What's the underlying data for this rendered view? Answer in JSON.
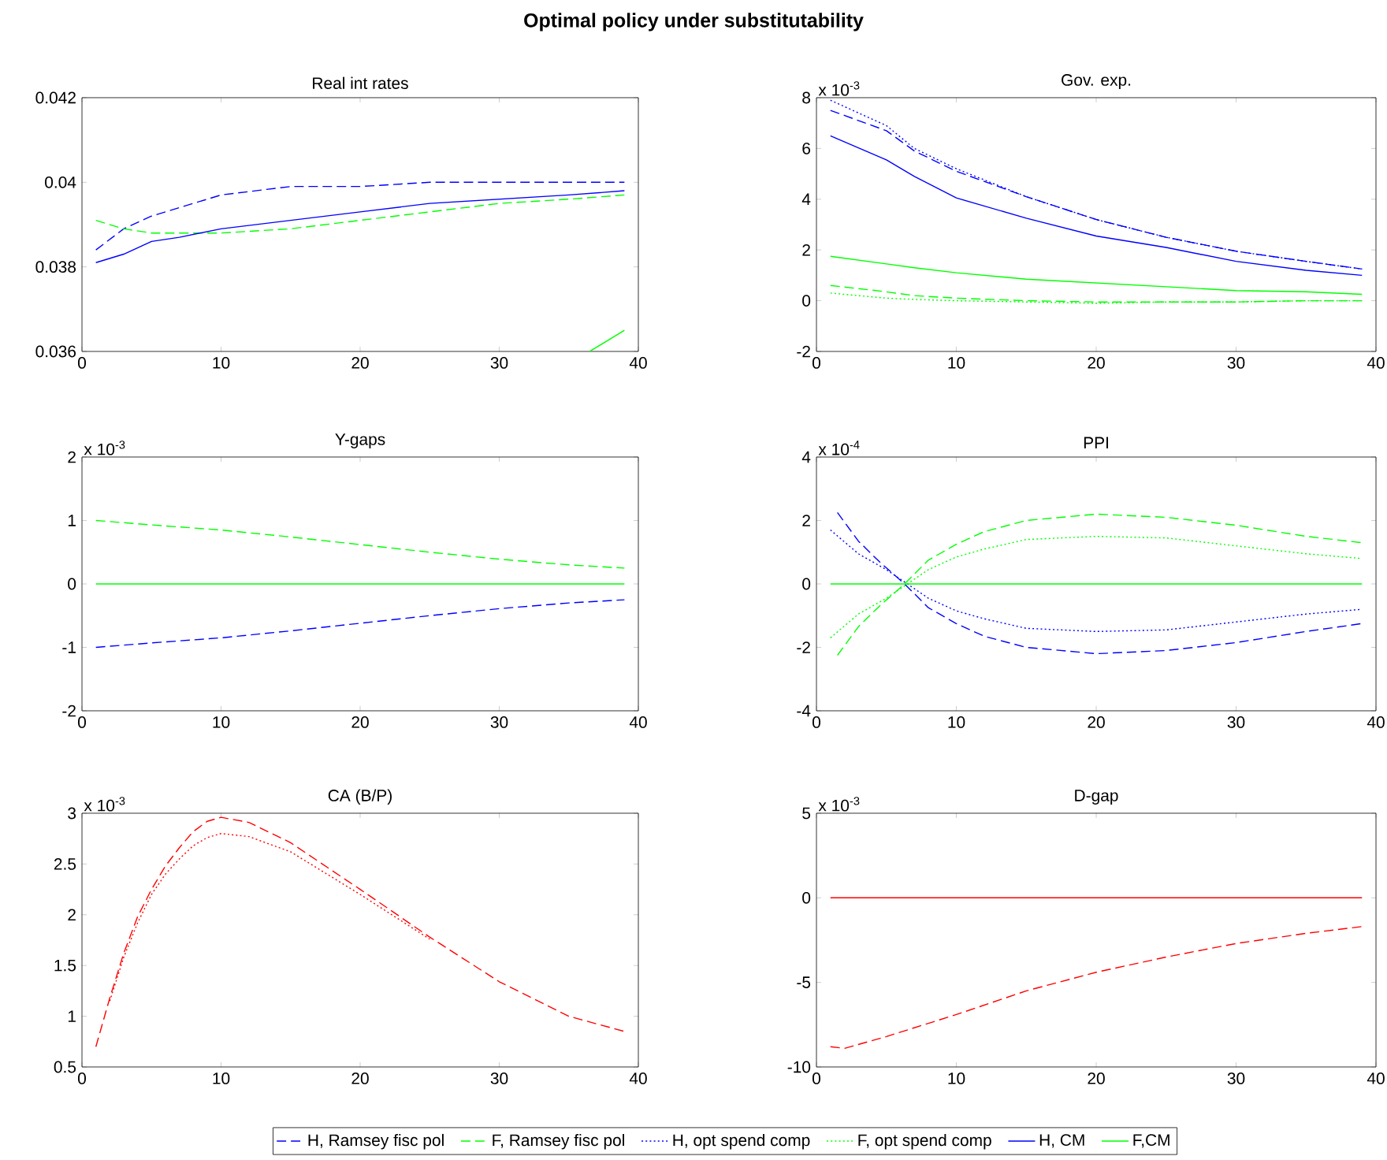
{
  "chart_data": [
    {
      "type": "line",
      "title": "Optimal policy under substitutability",
      "subtitle": "Real int rates",
      "x": [
        1,
        3,
        5,
        7,
        10,
        15,
        20,
        25,
        30,
        35,
        39
      ],
      "xlim": [
        0,
        40
      ],
      "xticks": [
        0,
        10,
        20,
        30,
        40
      ],
      "ylim": [
        0.036,
        0.042
      ],
      "yticks": [
        0.036,
        0.038,
        0.04,
        0.042
      ],
      "series": [
        {
          "color": "#0000ff",
          "line_style": "dashed",
          "values": [
            0.0384,
            0.0389,
            0.0392,
            0.0394,
            0.0397,
            0.0399,
            0.0399,
            0.04,
            0.04,
            0.04,
            0.04
          ]
        },
        {
          "color": "#00ff00",
          "line_style": "dashed",
          "values": [
            0.0391,
            0.0389,
            0.0388,
            0.0388,
            0.0388,
            0.0389,
            0.0391,
            0.0393,
            0.0395,
            0.0396,
            0.0397
          ]
        },
        {
          "color": "#0000ff",
          "line_style": "solid",
          "values": [
            0.0381,
            0.0383,
            0.0386,
            0.0387,
            0.0389,
            0.0391,
            0.0393,
            0.0395,
            0.0396,
            0.0397,
            0.0398
          ]
        },
        {
          "color": "#00ff00",
          "line_style": "solid",
          "x": [
            36.5,
            39
          ],
          "values": [
            0.036,
            0.0365
          ]
        }
      ]
    },
    {
      "type": "line",
      "title": "Gov. exp.",
      "annotations": [
        "x 10$^{-3}$"
      ],
      "x": [
        1,
        5,
        7,
        10,
        15,
        20,
        25,
        30,
        35,
        39
      ],
      "xlim": [
        0,
        40
      ],
      "xticks": [
        0,
        10,
        20,
        30,
        40
      ],
      "ylim": [
        -2,
        8
      ],
      "yticks": [
        -2,
        0,
        2,
        4,
        6,
        8
      ],
      "legend": "bottom",
      "series": [
        {
          "name": "H, Ramsey fisc pol",
          "color": "#0000ff",
          "line_style": "dashed",
          "values": [
            7.5,
            6.7,
            5.9,
            5.1,
            4.1,
            3.2,
            2.5,
            1.95,
            1.55,
            1.25
          ]
        },
        {
          "name": "F, Ramsey fisc pol",
          "color": "#00ff00",
          "line_style": "dashed",
          "values": [
            0.6,
            0.35,
            0.2,
            0.1,
            0,
            -0.05,
            -0.05,
            -0.05,
            0,
            0
          ]
        },
        {
          "name": "H, opt spend comp",
          "color": "#0000ff",
          "line_style": "dotted",
          "values": [
            7.9,
            6.9,
            6.0,
            5.2,
            4.1,
            3.2,
            2.5,
            1.95,
            1.55,
            1.25
          ]
        },
        {
          "name": "F, opt spend comp",
          "color": "#00ff00",
          "line_style": "dotted",
          "values": [
            0.3,
            0.1,
            0.05,
            0,
            -0.05,
            -0.1,
            -0.05,
            -0.05,
            0,
            0
          ]
        },
        {
          "name": "H, CM",
          "color": "#0000ff",
          "line_style": "solid",
          "values": [
            6.5,
            5.55,
            4.9,
            4.05,
            3.25,
            2.55,
            2.1,
            1.55,
            1.2,
            1.0
          ]
        },
        {
          "name": "F,CM",
          "color": "#00ff00",
          "line_style": "solid",
          "values": [
            1.75,
            1.45,
            1.3,
            1.1,
            0.85,
            0.7,
            0.55,
            0.4,
            0.35,
            0.25
          ]
        }
      ]
    },
    {
      "type": "line",
      "title": "Y-gaps",
      "annotations": [
        "x 10$^{-3}$"
      ],
      "x": [
        1,
        5,
        10,
        15,
        20,
        25,
        30,
        35,
        39
      ],
      "xlim": [
        0,
        40
      ],
      "xticks": [
        0,
        10,
        20,
        30,
        40
      ],
      "ylim": [
        -2,
        2
      ],
      "yticks": [
        -2,
        -1,
        0,
        1,
        2
      ],
      "series": [
        {
          "color": "#0000ff",
          "line_style": "dashed",
          "values": [
            -1.0,
            -0.93,
            -0.85,
            -0.74,
            -0.62,
            -0.5,
            -0.39,
            -0.3,
            -0.25
          ]
        },
        {
          "color": "#00ff00",
          "line_style": "dashed",
          "values": [
            1.0,
            0.93,
            0.85,
            0.74,
            0.62,
            0.5,
            0.39,
            0.3,
            0.25
          ]
        },
        {
          "color": "#00ff00",
          "line_style": "solid",
          "values": [
            0,
            0,
            0,
            0,
            0,
            0,
            0,
            0,
            0
          ]
        }
      ]
    },
    {
      "type": "line",
      "title": "PPI",
      "annotations": [
        "x 10$^{-4}$"
      ],
      "x": [
        1,
        3,
        5,
        6.5,
        8,
        10,
        12,
        15,
        20,
        25,
        30,
        35,
        39
      ],
      "xlim": [
        0,
        40
      ],
      "xticks": [
        0,
        10,
        20,
        30,
        40
      ],
      "ylim": [
        -4,
        4
      ],
      "yticks": [
        -4,
        -2,
        0,
        2,
        4
      ],
      "series": [
        {
          "color": "#0000ff",
          "line_style": "dashed",
          "x": [
            1.5,
            3,
            4.5,
            6.3,
            8,
            10,
            12,
            15,
            20,
            25,
            30,
            35,
            39
          ],
          "values": [
            2.25,
            1.35,
            0.7,
            0,
            -0.75,
            -1.25,
            -1.65,
            -2.0,
            -2.2,
            -2.1,
            -1.85,
            -1.5,
            -1.25
          ]
        },
        {
          "color": "#00ff00",
          "line_style": "dashed",
          "x": [
            1.5,
            3,
            4.5,
            6.3,
            8,
            10,
            12,
            15,
            20,
            25,
            30,
            35,
            39
          ],
          "values": [
            -2.25,
            -1.35,
            -0.7,
            0,
            0.75,
            1.25,
            1.65,
            2.0,
            2.2,
            2.1,
            1.85,
            1.5,
            1.3
          ]
        },
        {
          "color": "#0000ff",
          "line_style": "dotted",
          "values": [
            1.7,
            0.95,
            0.45,
            0,
            -0.45,
            -0.85,
            -1.1,
            -1.4,
            -1.5,
            -1.45,
            -1.2,
            -0.95,
            -0.8
          ]
        },
        {
          "color": "#00ff00",
          "line_style": "dotted",
          "values": [
            -1.7,
            -0.95,
            -0.45,
            0,
            0.45,
            0.85,
            1.1,
            1.4,
            1.5,
            1.45,
            1.2,
            0.95,
            0.8
          ]
        },
        {
          "color": "#00ff00",
          "line_style": "solid",
          "values": [
            0,
            0,
            0,
            0,
            0,
            0,
            0,
            0,
            0,
            0,
            0,
            0,
            0
          ]
        }
      ]
    },
    {
      "type": "line",
      "title": "CA (B/P)",
      "annotations": [
        "x 10$^{-3}$"
      ],
      "x": [
        1,
        2,
        3,
        4,
        5,
        6,
        7,
        8,
        9,
        10,
        12,
        15,
        20,
        25,
        30,
        35,
        39
      ],
      "xlim": [
        0,
        40
      ],
      "xticks": [
        0,
        10,
        20,
        30,
        40
      ],
      "ylim": [
        0.5,
        3
      ],
      "yticks": [
        0.5,
        1,
        1.5,
        2,
        2.5,
        3
      ],
      "series": [
        {
          "color": "#ff0000",
          "line_style": "dashed",
          "values": [
            0.7,
            1.18,
            1.62,
            1.98,
            2.25,
            2.48,
            2.66,
            2.82,
            2.92,
            2.96,
            2.91,
            2.71,
            2.25,
            1.78,
            1.34,
            1.0,
            0.85
          ]
        },
        {
          "color": "#ff0000",
          "line_style": "dotted",
          "values": [
            null,
            1.15,
            1.58,
            1.92,
            2.2,
            2.4,
            2.55,
            2.68,
            2.76,
            2.8,
            2.77,
            2.62,
            2.2,
            1.76,
            null,
            null,
            null
          ]
        }
      ]
    },
    {
      "type": "line",
      "title": "D-gap",
      "annotations": [
        "x 10$^{-3}$"
      ],
      "x": [
        1,
        2,
        5,
        10,
        15,
        20,
        25,
        30,
        35,
        39
      ],
      "xlim": [
        0,
        40
      ],
      "xticks": [
        0,
        10,
        20,
        30,
        40
      ],
      "ylim": [
        -10,
        5
      ],
      "yticks": [
        -10,
        -5,
        0,
        5
      ],
      "series": [
        {
          "color": "#ff0000",
          "line_style": "dashed",
          "values": [
            -8.8,
            -8.9,
            -8.2,
            -6.9,
            -5.5,
            -4.4,
            -3.5,
            -2.7,
            -2.1,
            -1.7
          ]
        },
        {
          "color": "#ff0000",
          "line_style": "solid",
          "values": [
            0,
            0,
            0,
            0,
            0,
            0,
            0,
            0,
            0,
            0
          ]
        }
      ]
    }
  ]
}
